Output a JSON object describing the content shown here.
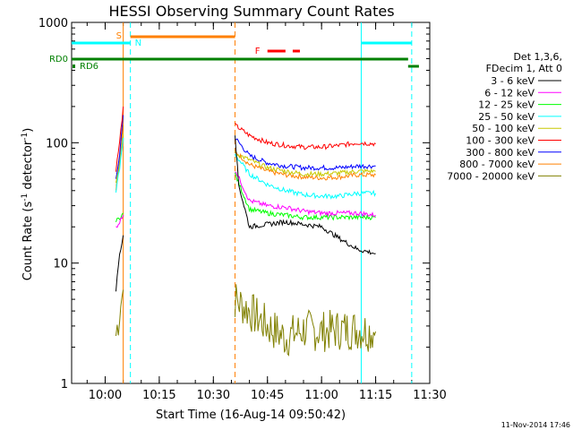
{
  "chart_data": {
    "type": "line",
    "title": "HESSI Observing Summary Count Rates",
    "xlabel": "Start Time (16-Aug-14 09:50:42)",
    "ylabel_main": "Count Rate (s",
    "ylabel_sup1": "-1",
    "ylabel_mid": " detector",
    "ylabel_sup2": "-1",
    "ylabel_end": ")",
    "y_scale": "log",
    "ylim": [
      1,
      1000
    ],
    "xlim": [
      "09:50:42",
      "11:30:00"
    ],
    "x_ticks": [
      "10:00",
      "10:15",
      "10:30",
      "10:45",
      "11:00",
      "11:15",
      "11:30"
    ],
    "y_ticks": [
      "1",
      "10",
      "100",
      "1000"
    ],
    "footer_date": "11-Nov-2014 17:46",
    "legend": {
      "header1": "Det 1,3,6,",
      "header2": "FDecim 1, Att 0",
      "placement": "right"
    },
    "flags": [
      {
        "label": "S",
        "color": "#ff8000",
        "start": "10:02",
        "end": "10:36"
      },
      {
        "label": "N",
        "color": "#00ffff",
        "start": "09:50:42",
        "end": "10:07"
      },
      {
        "label": "RD0",
        "color": "#008000",
        "start": "09:50:42",
        "end": "11:24"
      },
      {
        "label": "RD6",
        "color": "#008000",
        "start": "09:50:42",
        "end": "09:51"
      },
      {
        "label": "F",
        "color": "#ff0000",
        "start": "10:48",
        "end": "10:53"
      }
    ],
    "vlines": [
      {
        "time": "10:05",
        "color": "#ff8000",
        "style": "solid"
      },
      {
        "time": "10:07",
        "color": "#00ffff",
        "style": "dashed"
      },
      {
        "time": "10:36",
        "color": "#ff8000",
        "style": "dashed"
      },
      {
        "time": "11:11",
        "color": "#00ffff",
        "style": "solid"
      },
      {
        "time": "11:25",
        "color": "#00ffff",
        "style": "dashed"
      }
    ],
    "series": [
      {
        "name": "3 - 6 keV",
        "color": "#000000",
        "seg1": [
          [
            "10:03",
            6
          ],
          [
            "10:04",
            12
          ],
          [
            "10:05",
            17
          ]
        ],
        "seg2": [
          [
            "10:36",
            120
          ],
          [
            "10:37",
            45
          ],
          [
            "10:40",
            20
          ],
          [
            "10:45",
            21
          ],
          [
            "10:50",
            22
          ],
          [
            "10:55",
            21
          ],
          [
            "11:00",
            20
          ],
          [
            "11:05",
            16
          ],
          [
            "11:10",
            13
          ],
          [
            "11:15",
            12
          ]
        ]
      },
      {
        "name": "6 - 12 keV",
        "color": "#ff00ff",
        "seg1": [
          [
            "10:03",
            20
          ],
          [
            "10:04",
            22
          ],
          [
            "10:05",
            25
          ]
        ],
        "seg2": [
          [
            "10:36",
            60
          ],
          [
            "10:40",
            33
          ],
          [
            "10:45",
            30
          ],
          [
            "10:50",
            29
          ],
          [
            "10:55",
            27
          ],
          [
            "11:00",
            26
          ],
          [
            "11:05",
            26
          ],
          [
            "11:10",
            26
          ],
          [
            "11:15",
            25
          ]
        ]
      },
      {
        "name": "12 - 25 keV",
        "color": "#00ff00",
        "seg1": [
          [
            "10:03",
            22
          ],
          [
            "10:04",
            24
          ],
          [
            "10:05",
            26
          ]
        ],
        "seg2": [
          [
            "10:36",
            55
          ],
          [
            "10:40",
            28
          ],
          [
            "10:45",
            26
          ],
          [
            "10:50",
            25
          ],
          [
            "10:55",
            24
          ],
          [
            "11:00",
            24
          ],
          [
            "11:05",
            24
          ],
          [
            "11:10",
            24
          ],
          [
            "11:15",
            24
          ]
        ]
      },
      {
        "name": "25 - 50 keV",
        "color": "#00ffff",
        "seg1": [
          [
            "10:03",
            40
          ],
          [
            "10:04",
            60
          ],
          [
            "10:05",
            110
          ]
        ],
        "seg2": [
          [
            "10:36",
            80
          ],
          [
            "10:40",
            55
          ],
          [
            "10:45",
            45
          ],
          [
            "10:50",
            40
          ],
          [
            "10:55",
            37
          ],
          [
            "11:00",
            36
          ],
          [
            "11:05",
            36
          ],
          [
            "11:10",
            38
          ],
          [
            "11:15",
            38
          ]
        ]
      },
      {
        "name": "50 - 100 keV",
        "color": "#c8c800",
        "seg1": [
          [
            "10:03",
            45
          ],
          [
            "10:04",
            65
          ],
          [
            "10:05",
            120
          ]
        ],
        "seg2": [
          [
            "10:36",
            82
          ],
          [
            "10:40",
            72
          ],
          [
            "10:45",
            62
          ],
          [
            "10:50",
            58
          ],
          [
            "10:55",
            55
          ],
          [
            "11:00",
            55
          ],
          [
            "11:05",
            56
          ],
          [
            "11:10",
            58
          ],
          [
            "11:15",
            58
          ]
        ]
      },
      {
        "name": "100 - 300 keV",
        "color": "#ff0000",
        "seg1": [
          [
            "10:03",
            60
          ],
          [
            "10:04",
            100
          ],
          [
            "10:05",
            200
          ]
        ],
        "seg2": [
          [
            "10:36",
            140
          ],
          [
            "10:40",
            115
          ],
          [
            "10:45",
            100
          ],
          [
            "10:50",
            95
          ],
          [
            "10:55",
            92
          ],
          [
            "11:00",
            92
          ],
          [
            "11:05",
            95
          ],
          [
            "11:10",
            100
          ],
          [
            "11:15",
            98
          ]
        ]
      },
      {
        "name": "300 - 800 keV",
        "color": "#0000ff",
        "seg1": [
          [
            "10:03",
            48
          ],
          [
            "10:04",
            80
          ],
          [
            "10:05",
            170
          ]
        ],
        "seg2": [
          [
            "10:36",
            110
          ],
          [
            "10:40",
            78
          ],
          [
            "10:45",
            68
          ],
          [
            "10:50",
            64
          ],
          [
            "10:55",
            62
          ],
          [
            "11:00",
            62
          ],
          [
            "11:05",
            62
          ],
          [
            "11:10",
            64
          ],
          [
            "11:15",
            64
          ]
        ]
      },
      {
        "name": "800 - 7000 keV",
        "color": "#ff8000",
        "seg1": [
          [
            "10:03",
            42
          ],
          [
            "10:04",
            70
          ],
          [
            "10:05",
            140
          ]
        ],
        "seg2": [
          [
            "10:36",
            85
          ],
          [
            "10:40",
            66
          ],
          [
            "10:45",
            58
          ],
          [
            "10:50",
            54
          ],
          [
            "10:55",
            52
          ],
          [
            "11:00",
            51
          ],
          [
            "11:05",
            52
          ],
          [
            "11:10",
            54
          ],
          [
            "11:15",
            54
          ]
        ]
      },
      {
        "name": "7000 - 20000 keV",
        "color": "#808000",
        "seg1": [
          [
            "10:03",
            2.5
          ],
          [
            "10:04",
            4
          ],
          [
            "10:05",
            6
          ]
        ],
        "seg2": [
          [
            "10:36",
            5
          ],
          [
            "10:40",
            4
          ],
          [
            "10:45",
            3
          ],
          [
            "10:50",
            2.4
          ],
          [
            "10:55",
            2.8
          ],
          [
            "11:00",
            2.7
          ],
          [
            "11:05",
            2.8
          ],
          [
            "11:10",
            2.8
          ],
          [
            "11:15",
            2.7
          ]
        ]
      }
    ]
  }
}
